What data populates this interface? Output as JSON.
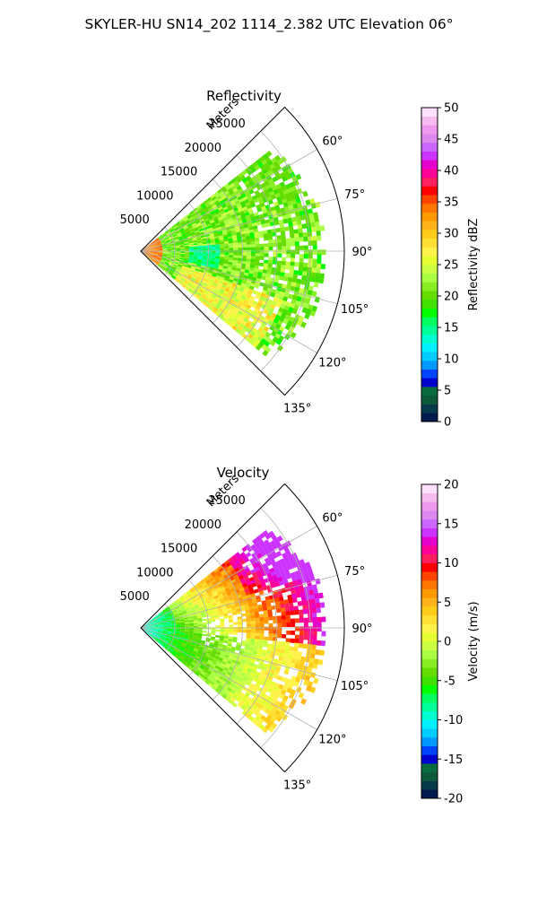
{
  "figure": {
    "title": "SKYLER-HU  SN14_202  1114_2.382 UTC Elevation 06°"
  },
  "chart_data": [
    {
      "type": "heatmap",
      "subtype": "polar-sector",
      "title": "Reflectivity",
      "range_label": "Meters",
      "range_ticks": [
        "5000",
        "10000",
        "15000",
        "20000",
        "25000"
      ],
      "rmax": 30000,
      "azimuth_range_deg": [
        45,
        135
      ],
      "azimuth_ticks": [
        "60°",
        "75°",
        "90°",
        "105°",
        "120°",
        "135°"
      ],
      "colorbar": {
        "label": "Reflectivity dBZ",
        "range": [
          0,
          50
        ],
        "ticks": [
          "0",
          "5",
          "10",
          "15",
          "20",
          "25",
          "30",
          "35",
          "40",
          "45",
          "50"
        ],
        "colors": [
          "#001a4d",
          "#073b4c",
          "#0d5a3a",
          "#0a6b3f",
          "#0000cc",
          "#0044ff",
          "#0099ff",
          "#00ccff",
          "#00f0ff",
          "#00ffd0",
          "#00ff99",
          "#00ff60",
          "#00ff00",
          "#40e000",
          "#66dd00",
          "#88ee22",
          "#aaff44",
          "#ccff44",
          "#e6ff33",
          "#fff24a",
          "#ffe033",
          "#ffcc1a",
          "#ffb31a",
          "#ff9900",
          "#ff7700",
          "#ff4400",
          "#ff0000",
          "#ff2060",
          "#ff0099",
          "#e600cc",
          "#cc33ff",
          "#cc66ff",
          "#dd88ee",
          "#ee99ee",
          "#f5bbee",
          "#ffe0ff"
        ]
      },
      "field_description": "Echo fills roughly 0–27 km; mostly 15–25 dBZ (green/yellow), 25–35 dBZ near the radar and in the southern sector, low 10–15 dBZ pocket near 90° at 7–11 km"
    },
    {
      "type": "heatmap",
      "subtype": "polar-sector",
      "title": "Velocity",
      "range_label": "Meters",
      "range_ticks": [
        "5000",
        "10000",
        "15000",
        "20000",
        "25000"
      ],
      "rmax": 30000,
      "azimuth_range_deg": [
        45,
        135
      ],
      "azimuth_ticks": [
        "60°",
        "75°",
        "90°",
        "105°",
        "120°",
        "135°"
      ],
      "colorbar": {
        "label": "Velocity (m/s)",
        "range": [
          -20,
          20
        ],
        "ticks": [
          "-20",
          "-15",
          "-10",
          "-5",
          "0",
          "5",
          "10",
          "15",
          "20"
        ],
        "colors": [
          "#001a4d",
          "#073b4c",
          "#0d5a3a",
          "#0a6b3f",
          "#0000cc",
          "#0044ff",
          "#0099ff",
          "#00ccff",
          "#00f0ff",
          "#00ffd0",
          "#00ff99",
          "#00ff60",
          "#00ff00",
          "#40e000",
          "#66dd00",
          "#88ee22",
          "#aaff44",
          "#ccff44",
          "#e6ff33",
          "#fff24a",
          "#ffe033",
          "#ffcc1a",
          "#ffb31a",
          "#ff9900",
          "#ff7700",
          "#ff4400",
          "#ff0000",
          "#ff2060",
          "#ff0099",
          "#e600cc",
          "#cc33ff",
          "#cc66ff",
          "#dd88ee",
          "#ee99ee",
          "#f5bbee",
          "#ffe0ff"
        ]
      },
      "field_description": "About -10 m/s near the radar, near 0 m/s at mid range, 5–12 m/s in the far northern sector, 0–5 m/s in the far southern sector"
    }
  ]
}
